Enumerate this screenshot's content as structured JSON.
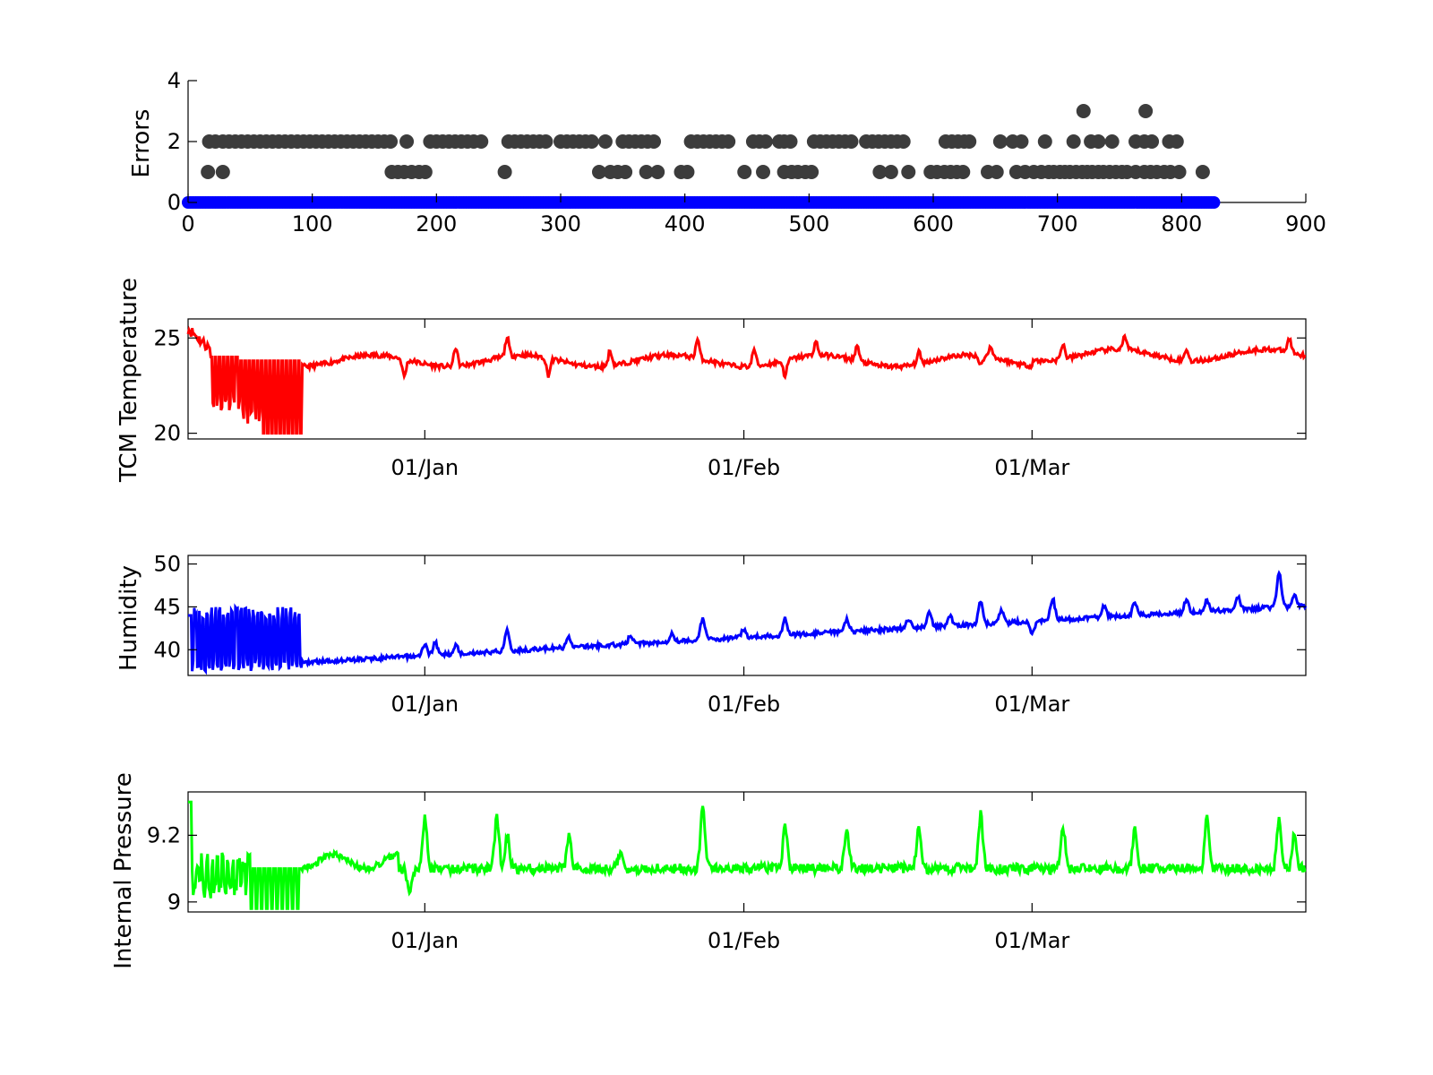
{
  "chart_data": [
    {
      "type": "scatter",
      "ylabel": "Errors",
      "xlim": [
        0,
        900
      ],
      "ylim": [
        0,
        4
      ],
      "xticks": [
        "0",
        "100",
        "200",
        "300",
        "400",
        "500",
        "600",
        "700",
        "800",
        "900"
      ],
      "yticks": [
        "0",
        "2",
        "4"
      ],
      "series": [
        {
          "color": "#3c3c3c",
          "points": [
            [
              17,
              2
            ],
            [
              22,
              2
            ],
            [
              28,
              2
            ],
            [
              33,
              2
            ],
            [
              38,
              2
            ],
            [
              43,
              2
            ],
            [
              48,
              2
            ],
            [
              53,
              2
            ],
            [
              58,
              2
            ],
            [
              63,
              2
            ],
            [
              68,
              2
            ],
            [
              73,
              2
            ],
            [
              78,
              2
            ],
            [
              83,
              2
            ],
            [
              88,
              2
            ],
            [
              93,
              2
            ],
            [
              98,
              2
            ],
            [
              103,
              2
            ],
            [
              108,
              2
            ],
            [
              113,
              2
            ],
            [
              118,
              2
            ],
            [
              123,
              2
            ],
            [
              128,
              2
            ],
            [
              133,
              2
            ],
            [
              138,
              2
            ],
            [
              143,
              2
            ],
            [
              148,
              2
            ],
            [
              153,
              2
            ],
            [
              158,
              2
            ],
            [
              163,
              2
            ],
            [
              176,
              2
            ],
            [
              195,
              2
            ],
            [
              200,
              2
            ],
            [
              205,
              2
            ],
            [
              210,
              2
            ],
            [
              215,
              2
            ],
            [
              220,
              2
            ],
            [
              225,
              2
            ],
            [
              230,
              2
            ],
            [
              236,
              2
            ],
            [
              258,
              2
            ],
            [
              263,
              2
            ],
            [
              268,
              2
            ],
            [
              273,
              2
            ],
            [
              278,
              2
            ],
            [
              283,
              2
            ],
            [
              288,
              2
            ],
            [
              300,
              2
            ],
            [
              305,
              2
            ],
            [
              310,
              2
            ],
            [
              315,
              2
            ],
            [
              320,
              2
            ],
            [
              325,
              2
            ],
            [
              336,
              2
            ],
            [
              350,
              2
            ],
            [
              355,
              2
            ],
            [
              360,
              2
            ],
            [
              365,
              2
            ],
            [
              370,
              2
            ],
            [
              375,
              2
            ],
            [
              405,
              2
            ],
            [
              410,
              2
            ],
            [
              415,
              2
            ],
            [
              420,
              2
            ],
            [
              425,
              2
            ],
            [
              430,
              2
            ],
            [
              435,
              2
            ],
            [
              455,
              2
            ],
            [
              460,
              2
            ],
            [
              465,
              2
            ],
            [
              476,
              2
            ],
            [
              480,
              2
            ],
            [
              485,
              2
            ],
            [
              504,
              2
            ],
            [
              509,
              2
            ],
            [
              514,
              2
            ],
            [
              519,
              2
            ],
            [
              524,
              2
            ],
            [
              529,
              2
            ],
            [
              534,
              2
            ],
            [
              546,
              2
            ],
            [
              551,
              2
            ],
            [
              556,
              2
            ],
            [
              561,
              2
            ],
            [
              566,
              2
            ],
            [
              571,
              2
            ],
            [
              576,
              2
            ],
            [
              610,
              2
            ],
            [
              615,
              2
            ],
            [
              620,
              2
            ],
            [
              625,
              2
            ],
            [
              629,
              2
            ],
            [
              654,
              2
            ],
            [
              664,
              2
            ],
            [
              671,
              2
            ],
            [
              690,
              2
            ],
            [
              713,
              2
            ],
            [
              727,
              2
            ],
            [
              733,
              2
            ],
            [
              744,
              2
            ],
            [
              763,
              2
            ],
            [
              770,
              2
            ],
            [
              776,
              2
            ],
            [
              790,
              2
            ],
            [
              796,
              2
            ],
            [
              16,
              1
            ],
            [
              28,
              1
            ],
            [
              164,
              1
            ],
            [
              169,
              1
            ],
            [
              174,
              1
            ],
            [
              180,
              1
            ],
            [
              186,
              1
            ],
            [
              191,
              1
            ],
            [
              255,
              1
            ],
            [
              331,
              1
            ],
            [
              340,
              1
            ],
            [
              346,
              1
            ],
            [
              352,
              1
            ],
            [
              369,
              1
            ],
            [
              378,
              1
            ],
            [
              397,
              1
            ],
            [
              402,
              1
            ],
            [
              448,
              1
            ],
            [
              463,
              1
            ],
            [
              480,
              1
            ],
            [
              486,
              1
            ],
            [
              491,
              1
            ],
            [
              497,
              1
            ],
            [
              502,
              1
            ],
            [
              557,
              1
            ],
            [
              566,
              1
            ],
            [
              580,
              1
            ],
            [
              598,
              1
            ],
            [
              603,
              1
            ],
            [
              609,
              1
            ],
            [
              614,
              1
            ],
            [
              619,
              1
            ],
            [
              624,
              1
            ],
            [
              644,
              1
            ],
            [
              651,
              1
            ],
            [
              667,
              1
            ],
            [
              674,
              1
            ],
            [
              681,
              1
            ],
            [
              687,
              1
            ],
            [
              693,
              1
            ],
            [
              697,
              1
            ],
            [
              702,
              1
            ],
            [
              706,
              1
            ],
            [
              710,
              1
            ],
            [
              715,
              1
            ],
            [
              720,
              1
            ],
            [
              724,
              1
            ],
            [
              728,
              1
            ],
            [
              733,
              1
            ],
            [
              737,
              1
            ],
            [
              742,
              1
            ],
            [
              747,
              1
            ],
            [
              752,
              1
            ],
            [
              756,
              1
            ],
            [
              763,
              1
            ],
            [
              770,
              1
            ],
            [
              775,
              1
            ],
            [
              780,
              1
            ],
            [
              786,
              1
            ],
            [
              791,
              1
            ],
            [
              798,
              1
            ],
            [
              817,
              1
            ],
            [
              721,
              3
            ],
            [
              771,
              3
            ]
          ]
        },
        {
          "color": "#0000ff",
          "y": 0,
          "xrange": [
            0,
            826
          ]
        }
      ]
    },
    {
      "type": "line",
      "ylabel": "TCM Temperature",
      "color": "#ff0000",
      "ylim": [
        19.7,
        26
      ],
      "yticks": [
        "20",
        "25"
      ],
      "xticks": [
        "01/Jan",
        "01/Feb",
        "01/Mar"
      ],
      "xtick_days": [
        23,
        54,
        82
      ],
      "xlim_days": [
        0,
        108.6
      ]
    },
    {
      "type": "line",
      "ylabel": "Humidity",
      "color": "#0000ff",
      "ylim": [
        37,
        51
      ],
      "yticks": [
        "40",
        "45",
        "50"
      ],
      "xticks": [
        "01/Jan",
        "01/Feb",
        "01/Mar"
      ],
      "xtick_days": [
        23,
        54,
        82
      ],
      "xlim_days": [
        0,
        108.6
      ]
    },
    {
      "type": "line",
      "ylabel": "Internal Pressure",
      "color": "#00ff00",
      "ylim": [
        8.97,
        9.33
      ],
      "yticks": [
        "9",
        "9.2"
      ],
      "xticks": [
        "01/Jan",
        "01/Feb",
        "01/Mar"
      ],
      "xtick_days": [
        23,
        54,
        82
      ],
      "xlim_days": [
        0,
        108.6
      ]
    }
  ]
}
